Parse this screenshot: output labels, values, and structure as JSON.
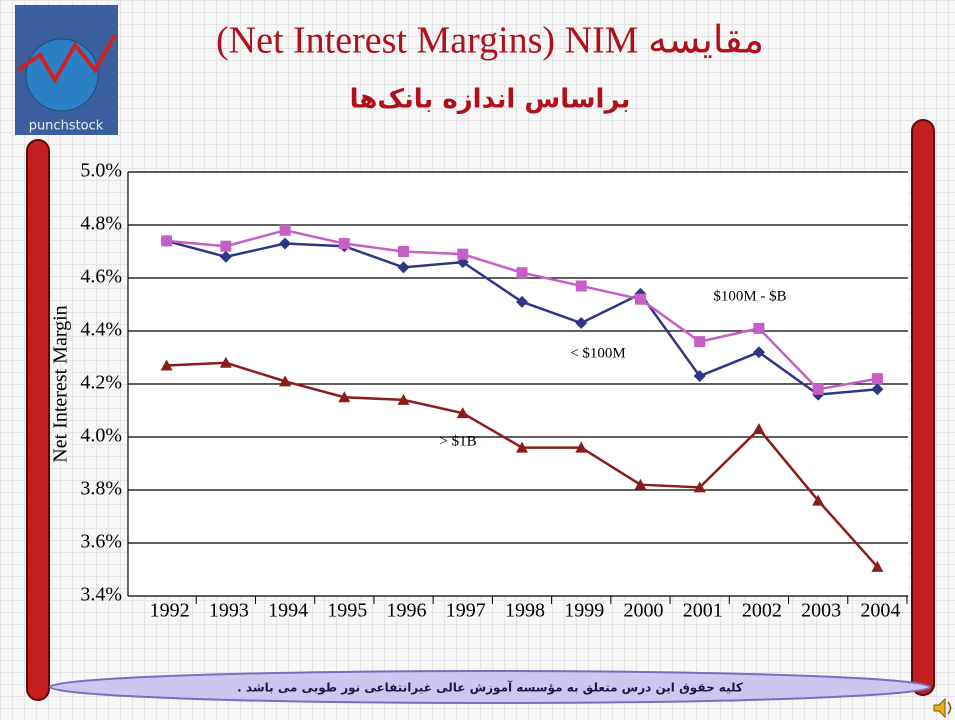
{
  "chart_data": {
    "type": "line",
    "title": "(Net Interest Margins) NIM مقایسه",
    "subtitle": "براساس اندازه بانک‌ها",
    "y_label": "Net Interest Margin",
    "categories": [
      "1992",
      "1993",
      "1994",
      "1995",
      "1996",
      "1997",
      "1998",
      "1999",
      "2000",
      "2001",
      "2002",
      "2003",
      "2004"
    ],
    "series": [
      {
        "name": "< $100M",
        "color": "#2e3685",
        "marker": "diamond",
        "values": [
          4.74,
          4.68,
          4.73,
          4.72,
          4.64,
          4.66,
          4.51,
          4.43,
          4.54,
          4.23,
          4.32,
          4.16,
          4.18
        ]
      },
      {
        "name": "$100M - $B",
        "color": "#c55fc5",
        "marker": "square",
        "values": [
          4.74,
          4.72,
          4.78,
          4.73,
          4.7,
          4.69,
          4.62,
          4.57,
          4.52,
          4.36,
          4.41,
          4.18,
          4.22
        ]
      },
      {
        "name": "> $1B",
        "color": "#8b1c1c",
        "marker": "triangle",
        "values": [
          4.27,
          4.28,
          4.21,
          4.15,
          4.14,
          4.09,
          3.96,
          3.96,
          3.82,
          3.81,
          4.03,
          3.76,
          3.51
        ]
      }
    ],
    "ylim": [
      3.4,
      5.0
    ],
    "yticks": [
      {
        "value": 3.4,
        "label": "3.4%"
      },
      {
        "value": 3.6,
        "label": "3.6%"
      },
      {
        "value": 3.8,
        "label": "3.8%"
      },
      {
        "value": 4.0,
        "label": "4.0%"
      },
      {
        "value": 4.2,
        "label": "4.2%"
      },
      {
        "value": 4.4,
        "label": "4.4%"
      },
      {
        "value": 4.6,
        "label": "4.6%"
      },
      {
        "value": 4.8,
        "label": "4.8%"
      },
      {
        "value": 5.0,
        "label": "5.0%"
      }
    ],
    "grid": true
  },
  "slide": {
    "logo_text": "punchstock",
    "footer": "کلیه حقوق این درس متعلق به مؤسسه آموزش عالی غیرانتفاعی نور طوبی می باشد ."
  }
}
